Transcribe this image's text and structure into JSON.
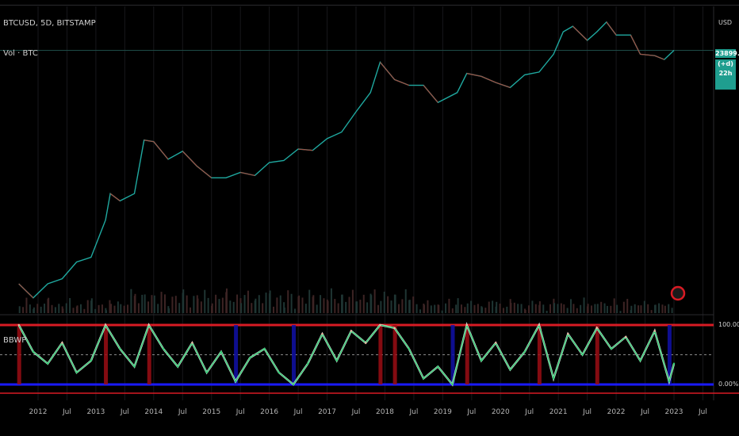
{
  "header": {
    "symbol_line": "BTCUSD, 5D, BITSTAMP",
    "volume_label": "Vol · BTC",
    "currency": "USD"
  },
  "price_panel": {
    "last_price": "23899.00",
    "change_tag": "(+d) 22h"
  },
  "indicator": {
    "name": "BBWP",
    "upper_label": "100.00%",
    "lower_label": "0.00%"
  },
  "colors": {
    "background": "#000000",
    "price_line": "#1fa9a0",
    "price_down": "#c0392b",
    "volume": "#3a2f2f",
    "bbwp_low": "#2ecc71",
    "bbwp_high": "#f5b7a0",
    "band_high": "#d81b24",
    "band_low": "#1a1aff",
    "accent": "#1f9e8f"
  },
  "x_ticks": [
    "2012",
    "Jul",
    "2013",
    "Jul",
    "2014",
    "Jul",
    "2015",
    "Jul",
    "2016",
    "Jul",
    "2017",
    "Jul",
    "2018",
    "Jul",
    "2019",
    "Jul",
    "2020",
    "Jul",
    "2021",
    "Jul",
    "2022",
    "Jul",
    "2023",
    "Jul"
  ],
  "chart_data": {
    "type": "line",
    "title": "BTCUSD, 5D, BITSTAMP",
    "y_scale": "log",
    "series": [
      {
        "name": "BTCUSD",
        "x": [
          "2011-09",
          "2011-12",
          "2012-03",
          "2012-06",
          "2012-09",
          "2012-12",
          "2013-03",
          "2013-04",
          "2013-06",
          "2013-09",
          "2013-11",
          "2014-01",
          "2014-04",
          "2014-07",
          "2014-10",
          "2015-01",
          "2015-04",
          "2015-07",
          "2015-10",
          "2016-01",
          "2016-04",
          "2016-07",
          "2016-10",
          "2017-01",
          "2017-04",
          "2017-07",
          "2017-10",
          "2017-12",
          "2018-03",
          "2018-06",
          "2018-09",
          "2018-12",
          "2019-04",
          "2019-06",
          "2019-09",
          "2019-12",
          "2020-03",
          "2020-06",
          "2020-09",
          "2020-12",
          "2021-02",
          "2021-04",
          "2021-07",
          "2021-09",
          "2021-11",
          "2022-01",
          "2022-04",
          "2022-06",
          "2022-09",
          "2022-11",
          "2023-01"
        ],
        "values": [
          5,
          3,
          5,
          6,
          11,
          13,
          50,
          130,
          100,
          130,
          900,
          850,
          450,
          600,
          350,
          230,
          230,
          280,
          250,
          400,
          430,
          650,
          620,
          950,
          1200,
          2500,
          5000,
          15000,
          8000,
          6500,
          6500,
          3500,
          5000,
          10000,
          9000,
          7200,
          6000,
          9500,
          10500,
          20000,
          45000,
          55000,
          33000,
          45000,
          64000,
          40000,
          40000,
          20000,
          19000,
          16500,
          23000
        ]
      }
    ],
    "bbwp_series": {
      "name": "BBWP",
      "ylim": [
        0,
        100
      ],
      "x": [
        "2011-09",
        "2011-12",
        "2012-03",
        "2012-06",
        "2012-09",
        "2012-12",
        "2013-03",
        "2013-06",
        "2013-09",
        "2013-12",
        "2014-03",
        "2014-06",
        "2014-09",
        "2014-12",
        "2015-03",
        "2015-06",
        "2015-09",
        "2015-12",
        "2016-03",
        "2016-06",
        "2016-09",
        "2016-12",
        "2017-03",
        "2017-06",
        "2017-09",
        "2017-12",
        "2018-03",
        "2018-06",
        "2018-09",
        "2018-12",
        "2019-03",
        "2019-06",
        "2019-09",
        "2019-12",
        "2020-03",
        "2020-06",
        "2020-09",
        "2020-12",
        "2021-03",
        "2021-06",
        "2021-09",
        "2021-12",
        "2022-03",
        "2022-06",
        "2022-09",
        "2022-12",
        "2023-01"
      ],
      "values": [
        100,
        55,
        35,
        70,
        20,
        40,
        100,
        60,
        30,
        100,
        60,
        30,
        70,
        20,
        55,
        5,
        45,
        60,
        20,
        0,
        35,
        85,
        40,
        90,
        70,
        100,
        95,
        60,
        10,
        30,
        0,
        100,
        40,
        70,
        25,
        55,
        100,
        10,
        85,
        50,
        95,
        60,
        80,
        40,
        90,
        5,
        35
      ]
    },
    "ylim": [
      2,
      80000
    ]
  }
}
